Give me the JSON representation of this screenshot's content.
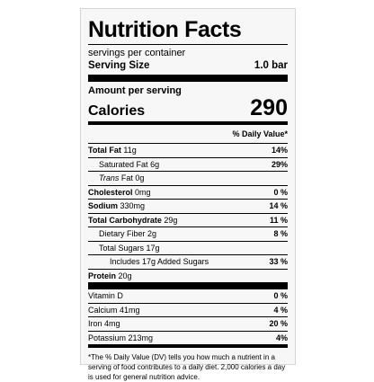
{
  "title": "Nutrition Facts",
  "servings": "servings per container",
  "serving_size": {
    "label": "Serving Size",
    "value": "1.0 bar"
  },
  "amount_per_serving": "Amount per serving",
  "calories": {
    "label": "Calories",
    "value": "290"
  },
  "dv_header": "% Daily Value*",
  "nutrients": [
    {
      "name": "Total Fat",
      "amount": "11g",
      "dv": "14%"
    },
    {
      "name": "Saturated Fat",
      "amount": "6g",
      "dv": "29%"
    },
    {
      "name": "Trans",
      "name_suffix": "Fat",
      "amount": "0g",
      "dv": ""
    },
    {
      "name": "Cholesterol",
      "amount": "0mg",
      "dv": "0 %"
    },
    {
      "name": "Sodium",
      "amount": "330mg",
      "dv": "14 %"
    },
    {
      "name": "Total Carbohydrate",
      "amount": "29g",
      "dv": "11 %"
    },
    {
      "name": "Dietary Fiber",
      "amount": "2g",
      "dv": "8 %"
    },
    {
      "name": "Total Sugars",
      "amount": "17g",
      "dv": ""
    },
    {
      "name": "Includes 17g Added Sugars",
      "amount": "",
      "dv": "33 %"
    },
    {
      "name": "Protein",
      "amount": "20g",
      "dv": ""
    }
  ],
  "vitamins": [
    {
      "name": "Vitamin D",
      "dv": "0 %"
    },
    {
      "name": "Calcium 41mg",
      "dv": "4 %"
    },
    {
      "name": "Iron 4mg",
      "dv": "20 %"
    },
    {
      "name": "Potassium 213mg",
      "dv": "4%"
    }
  ],
  "footnote": "*The % Daily Value (DV) tells you how much a nutrient in a serving of food contributes to a daily diet. 2,000 calories a day is used for general nutrition advice."
}
